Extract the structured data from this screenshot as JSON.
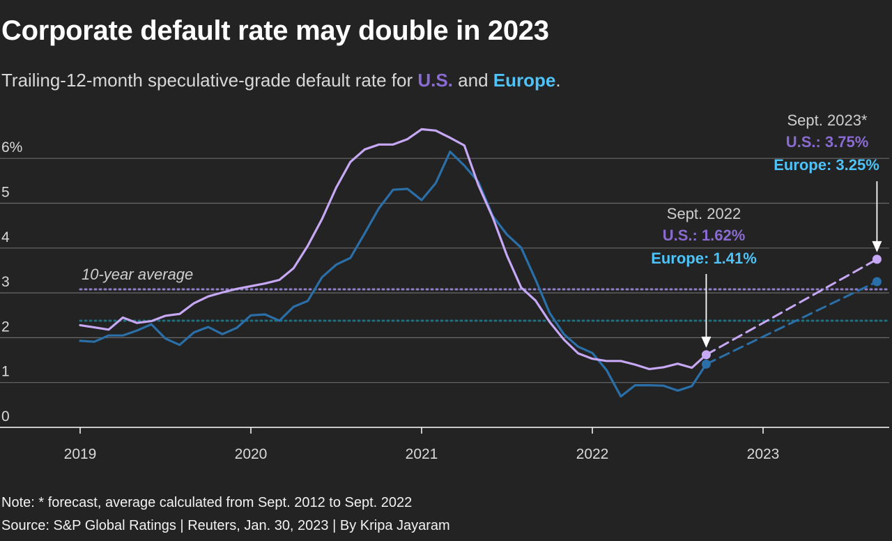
{
  "title": "Corporate default rate may double in 2023",
  "subtitle": {
    "prefix": "Trailing-12-month speculative-grade default rate for ",
    "us": "U.S.",
    "middle": " and ",
    "eu": "Europe",
    "suffix": "."
  },
  "footer": {
    "note": "Note: * forecast, average calculated from Sept. 2012 to Sept. 2022",
    "source": "Source: S&P Global Ratings | Reuters, Jan. 30, 2023 | By Kripa Jayaram"
  },
  "annotations": {
    "avg_label": "10-year average",
    "sept2022": {
      "date": "Sept. 2022",
      "us": "U.S.: 1.62%",
      "eu": "Europe: 1.41%"
    },
    "sept2023": {
      "date": "Sept. 2023*",
      "us": "U.S.: 3.75%",
      "eu": "Europe: 3.25%"
    }
  },
  "colors": {
    "us": "#c7a8f5",
    "us_text": "#8a6bd1",
    "eu": "#2a6fa8",
    "eu_text": "#4fc3f7",
    "us_avg": "#8f7fc9",
    "eu_avg": "#1f6f80",
    "grid": "#6a6a6a"
  },
  "chart_data": {
    "type": "line",
    "title": "Corporate default rate may double in 2023",
    "ylim": [
      0,
      6
    ],
    "yticks": [
      0,
      1,
      2,
      3,
      4,
      5,
      6
    ],
    "ytick_labels": [
      "0",
      "1",
      "2",
      "3",
      "4",
      "5",
      "6%"
    ],
    "xticks": [
      2019,
      2020,
      2021,
      2022,
      2023
    ],
    "xtick_labels": [
      "2019",
      "2020",
      "2021",
      "2022",
      "2023"
    ],
    "grid": "horizontal",
    "reference_lines": [
      {
        "name": "10-year average",
        "series": "U.S.",
        "value": 3.08
      },
      {
        "series": "Europe",
        "value": 2.38
      }
    ],
    "series": [
      {
        "name": "U.S.",
        "x": [
          2019.0,
          2019.083,
          2019.167,
          2019.25,
          2019.333,
          2019.417,
          2019.5,
          2019.583,
          2019.667,
          2019.75,
          2019.833,
          2019.917,
          2020.0,
          2020.083,
          2020.167,
          2020.25,
          2020.333,
          2020.417,
          2020.5,
          2020.583,
          2020.667,
          2020.75,
          2020.833,
          2020.917,
          2021.0,
          2021.083,
          2021.167,
          2021.25,
          2021.333,
          2021.417,
          2021.5,
          2021.583,
          2021.667,
          2021.75,
          2021.833,
          2021.917,
          2022.0,
          2022.083,
          2022.167,
          2022.25,
          2022.333,
          2022.417,
          2022.5,
          2022.583,
          2022.667
        ],
        "y": [
          2.28,
          2.23,
          2.18,
          2.45,
          2.33,
          2.37,
          2.49,
          2.53,
          2.77,
          2.92,
          3.01,
          3.09,
          3.15,
          3.21,
          3.29,
          3.55,
          4.05,
          4.65,
          5.35,
          5.92,
          6.2,
          6.31,
          6.31,
          6.43,
          6.65,
          6.62,
          6.46,
          6.29,
          5.4,
          4.68,
          3.83,
          3.12,
          2.83,
          2.35,
          1.96,
          1.65,
          1.53,
          1.48,
          1.48,
          1.4,
          1.3,
          1.34,
          1.42,
          1.33,
          1.62
        ]
      },
      {
        "name": "Europe",
        "x": [
          2019.0,
          2019.083,
          2019.167,
          2019.25,
          2019.333,
          2019.417,
          2019.5,
          2019.583,
          2019.667,
          2019.75,
          2019.833,
          2019.917,
          2020.0,
          2020.083,
          2020.167,
          2020.25,
          2020.333,
          2020.417,
          2020.5,
          2020.583,
          2020.667,
          2020.75,
          2020.833,
          2020.917,
          2021.0,
          2021.083,
          2021.167,
          2021.25,
          2021.333,
          2021.417,
          2021.5,
          2021.583,
          2021.667,
          2021.75,
          2021.833,
          2021.917,
          2022.0,
          2022.083,
          2022.167,
          2022.25,
          2022.333,
          2022.417,
          2022.5,
          2022.583,
          2022.667
        ],
        "y": [
          1.93,
          1.91,
          2.05,
          2.05,
          2.16,
          2.3,
          1.98,
          1.84,
          2.12,
          2.24,
          2.08,
          2.22,
          2.5,
          2.52,
          2.38,
          2.69,
          2.82,
          3.35,
          3.63,
          3.78,
          4.33,
          4.89,
          5.3,
          5.32,
          5.07,
          5.45,
          6.15,
          5.84,
          5.47,
          4.71,
          4.3,
          4.01,
          3.3,
          2.55,
          2.08,
          1.8,
          1.66,
          1.28,
          0.69,
          0.94,
          0.94,
          0.93,
          0.82,
          0.92,
          1.41
        ]
      },
      {
        "name": "U.S. forecast",
        "x": [
          2022.667,
          2023.667
        ],
        "y": [
          1.62,
          3.75
        ]
      },
      {
        "name": "Europe forecast",
        "x": [
          2022.667,
          2023.667
        ],
        "y": [
          1.41,
          3.25
        ]
      }
    ]
  }
}
